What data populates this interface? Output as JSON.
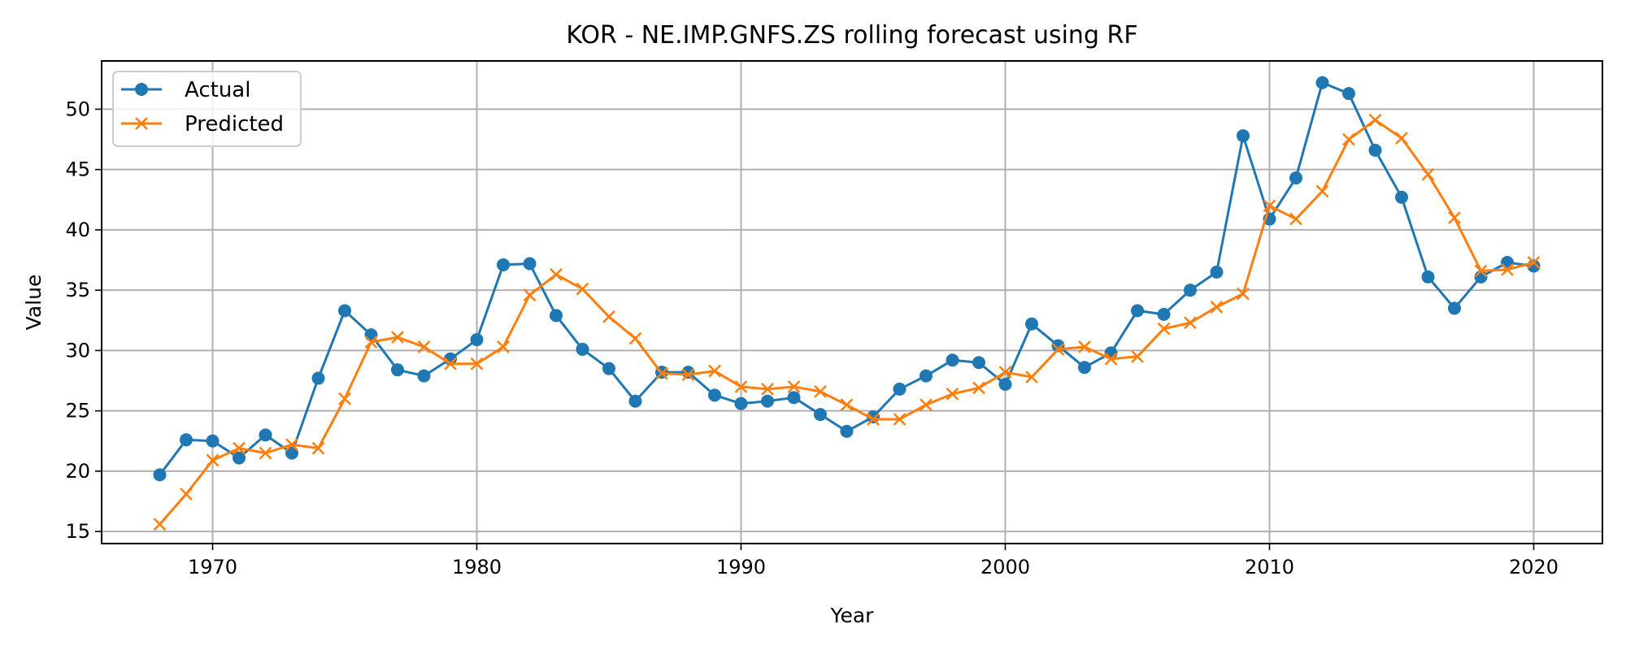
{
  "chart_data": {
    "type": "line",
    "title": "KOR - NE.IMP.GNFS.ZS rolling forecast using RF",
    "xlabel": "Year",
    "ylabel": "Value",
    "xlim": [
      1965.8,
      2022.6
    ],
    "ylim": [
      14.0,
      54.0
    ],
    "xticks": [
      1970,
      1980,
      1990,
      2000,
      2010,
      2020
    ],
    "yticks": [
      15,
      20,
      25,
      30,
      35,
      40,
      45,
      50
    ],
    "grid": true,
    "legend_position": "top-left",
    "x": [
      1968,
      1969,
      1970,
      1971,
      1972,
      1973,
      1974,
      1975,
      1976,
      1977,
      1978,
      1979,
      1980,
      1981,
      1982,
      1983,
      1984,
      1985,
      1986,
      1987,
      1988,
      1989,
      1990,
      1991,
      1992,
      1993,
      1994,
      1995,
      1996,
      1997,
      1998,
      1999,
      2000,
      2001,
      2002,
      2003,
      2004,
      2005,
      2006,
      2007,
      2008,
      2009,
      2010,
      2011,
      2012,
      2013,
      2014,
      2015,
      2016,
      2017,
      2018,
      2019,
      2020
    ],
    "series": [
      {
        "name": "Actual",
        "color": "#1f77b4",
        "marker": "circle",
        "values": [
          19.7,
          22.6,
          22.5,
          21.1,
          23.0,
          21.5,
          27.7,
          33.3,
          31.3,
          28.4,
          27.9,
          29.3,
          30.9,
          37.1,
          37.2,
          32.9,
          30.1,
          28.5,
          25.8,
          28.2,
          28.2,
          26.3,
          25.6,
          25.8,
          26.1,
          24.7,
          23.3,
          24.5,
          26.8,
          27.9,
          29.2,
          29.0,
          27.2,
          32.2,
          30.4,
          28.6,
          29.8,
          33.3,
          33.0,
          35.0,
          36.5,
          47.8,
          40.9,
          44.3,
          52.2,
          51.3,
          46.6,
          42.7,
          36.1,
          33.5,
          36.1,
          37.3,
          37.0
        ]
      },
      {
        "name": "Predicted",
        "color": "#ff7f0e",
        "marker": "x",
        "values": [
          15.6,
          18.1,
          20.9,
          21.9,
          21.5,
          22.2,
          21.9,
          26.0,
          30.7,
          31.1,
          30.3,
          28.9,
          28.9,
          30.3,
          34.6,
          36.3,
          35.1,
          32.8,
          31.0,
          28.1,
          28.0,
          28.3,
          27.0,
          26.8,
          27.0,
          26.6,
          25.5,
          24.3,
          24.3,
          25.5,
          26.4,
          26.9,
          28.2,
          27.8,
          30.1,
          30.3,
          29.3,
          29.5,
          31.8,
          32.3,
          33.6,
          34.7,
          42.0,
          40.9,
          43.2,
          47.5,
          49.1,
          47.6,
          44.6,
          41.0,
          36.6,
          36.7,
          37.3
        ]
      }
    ]
  }
}
